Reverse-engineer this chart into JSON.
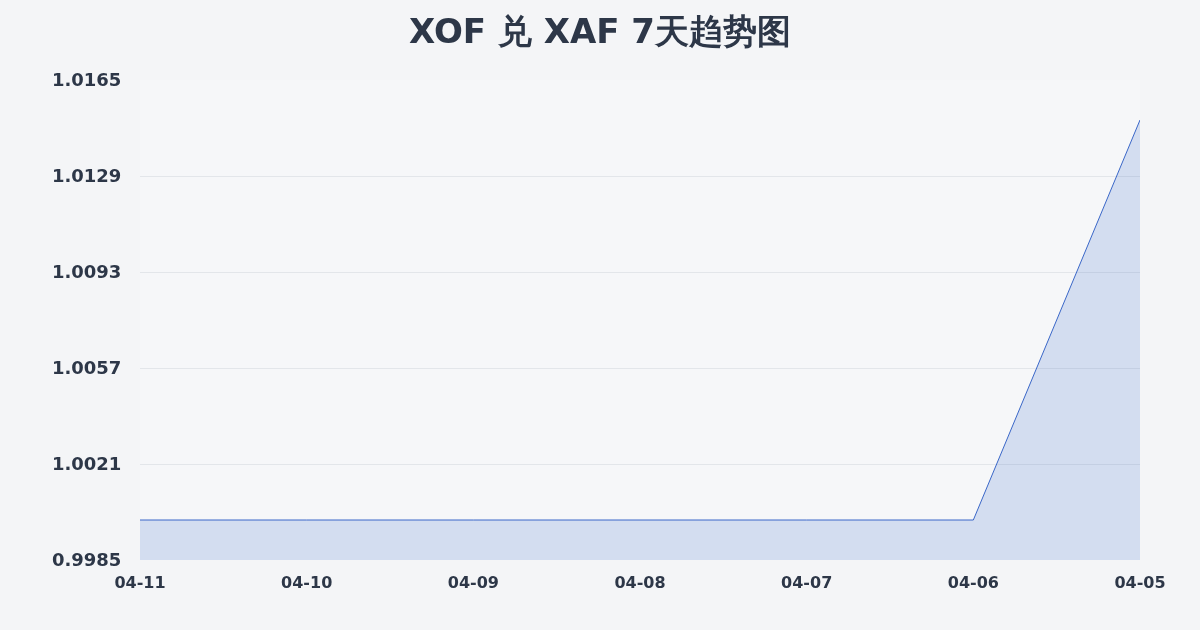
{
  "chart_data": {
    "type": "area",
    "title": "XOF 兑 XAF 7天趋势图",
    "categories": [
      "04-11",
      "04-10",
      "04-09",
      "04-08",
      "04-07",
      "04-06",
      "04-05"
    ],
    "series": [
      {
        "color": "#3a67c8",
        "values": [
          1.0,
          1.0,
          1.0,
          1.0,
          1.0,
          1.0,
          1.015
        ]
      }
    ],
    "ylim": [
      0.9985,
      1.0165
    ],
    "yticks": [
      0.9985,
      1.0021,
      1.0057,
      1.0093,
      1.0129,
      1.0165
    ],
    "grid": "y"
  }
}
